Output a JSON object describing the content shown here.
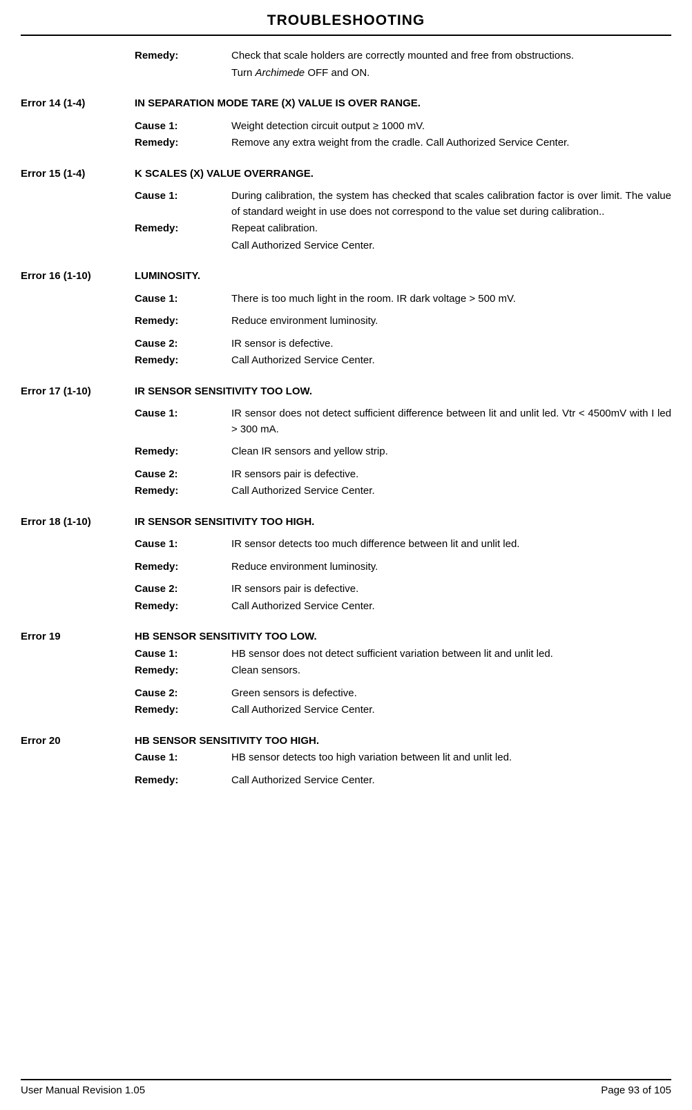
{
  "header": {
    "title": "TROUBLESHOOTING"
  },
  "intro": {
    "remedy_label": "Remedy:",
    "remedy_text1": "Check that scale holders are correctly mounted and free from obstructions.",
    "remedy_text2_pre": "Turn ",
    "remedy_text2_italic": "Archimede",
    "remedy_text2_post": " OFF and ON."
  },
  "e14": {
    "error": "Error 14 (1-4)",
    "title": "IN SEPARATION MODE TARE (X) VALUE IS OVER RANGE.",
    "cause1_label": "Cause 1:",
    "cause1_text": "Weight detection circuit output ≥ 1000 mV.",
    "remedy_label": "Remedy:",
    "remedy_text": "Remove any extra weight from the cradle. Call Authorized Service Center."
  },
  "e15": {
    "error": "Error 15 (1-4)",
    "title": "K SCALES (X) VALUE OVERRANGE.",
    "cause1_label": "Cause 1:",
    "cause1_text": "During calibration, the system has checked that scales calibration factor is over limit. The value of standard weight in use does not correspond to the value set during calibration..",
    "remedy_label": "Remedy:",
    "remedy_text1": " Repeat calibration.",
    "remedy_text2": "Call Authorized Service Center."
  },
  "e16": {
    "error": "Error 16 (1-10)",
    "title": "LUMINOSITY.",
    "cause1_label": "Cause 1:",
    "cause1_text": "There is too much light in the room. IR dark voltage > 500 mV.",
    "remedy1_label": "Remedy:",
    "remedy1_text": "Reduce environment luminosity.",
    "cause2_label": "Cause 2:",
    "cause2_text": "IR sensor is defective.",
    "remedy2_label": "Remedy:",
    "remedy2_text": "Call Authorized Service Center."
  },
  "e17": {
    "error": "Error 17 (1-10)",
    "title": "IR SENSOR SENSITIVITY TOO LOW.",
    "cause1_label": "Cause 1:",
    "cause1_text": "IR sensor does not detect sufficient difference between lit and unlit led. Vtr < 4500mV with I led > 300 mA.",
    "remedy1_label": "Remedy:",
    "remedy1_text": "Clean IR sensors and yellow strip.",
    "cause2_label": "Cause 2:",
    "cause2_text": "IR sensors pair is defective.",
    "remedy2_label": "Remedy:",
    "remedy2_text": "Call Authorized Service Center."
  },
  "e18": {
    "error": "Error 18 (1-10)",
    "title": "IR SENSOR SENSITIVITY TOO HIGH.",
    "cause1_label": "Cause 1:",
    "cause1_text": "IR sensor detects too much difference between lit and unlit led.",
    "remedy1_label": "Remedy:",
    "remedy1_text": "Reduce environment luminosity.",
    "cause2_label": "Cause 2:",
    "cause2_text": "IR sensors pair is defective.",
    "remedy2_label": "Remedy:",
    "remedy2_text": "Call Authorized Service Center."
  },
  "e19": {
    "error": "Error 19",
    "title": "HB SENSOR SENSITIVITY TOO LOW.",
    "cause1_label": "Cause 1:",
    "cause1_text": "HB sensor does not detect sufficient variation between lit and unlit led.",
    "remedy1_label": "Remedy:",
    "remedy1_text": "Clean sensors.",
    "cause2_label": "Cause 2:",
    "cause2_text": "Green sensors is defective.",
    "remedy2_label": "Remedy:",
    "remedy2_text": "Call Authorized Service Center."
  },
  "e20": {
    "error": "Error 20",
    "title": "HB SENSOR SENSITIVITY TOO HIGH.",
    "cause1_label": "Cause 1:",
    "cause1_text": "HB sensor detects too high variation between lit and unlit led.",
    "remedy1_label": "Remedy:",
    "remedy1_text": "Call Authorized Service Center."
  },
  "footer": {
    "left": "User Manual Revision 1.05",
    "right": "Page 93 of 105"
  }
}
